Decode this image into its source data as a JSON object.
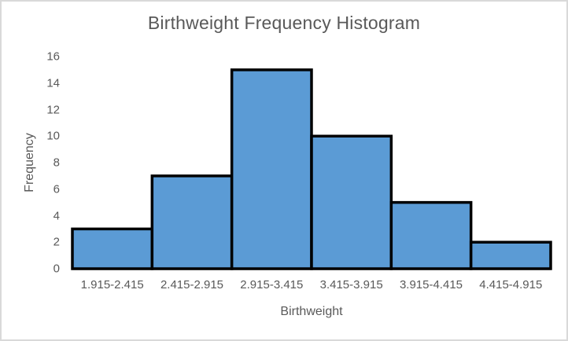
{
  "chart_data": {
    "type": "bar",
    "subtype": "histogram",
    "title": "Birthweight Frequency Histogram",
    "xlabel": "Birthweight",
    "ylabel": "Frequency",
    "categories": [
      "1.915-2.415",
      "2.415-2.915",
      "2.915-3.415",
      "3.415-3.915",
      "3.915-4.415",
      "4.415-4.915"
    ],
    "values": [
      3,
      7,
      15,
      10,
      5,
      2
    ],
    "ylim": [
      0,
      16
    ],
    "yticks": [
      0,
      2,
      4,
      6,
      8,
      10,
      12,
      14,
      16
    ],
    "grid": false,
    "legend": "none",
    "gap_between_bars": false,
    "colors": {
      "bar_fill": "#5B9BD5",
      "bar_stroke": "#000000",
      "text": "#595959",
      "axis_line": "#D9D9D9",
      "frame_border": "#D9D9D9",
      "background": "#FFFFFF"
    }
  }
}
